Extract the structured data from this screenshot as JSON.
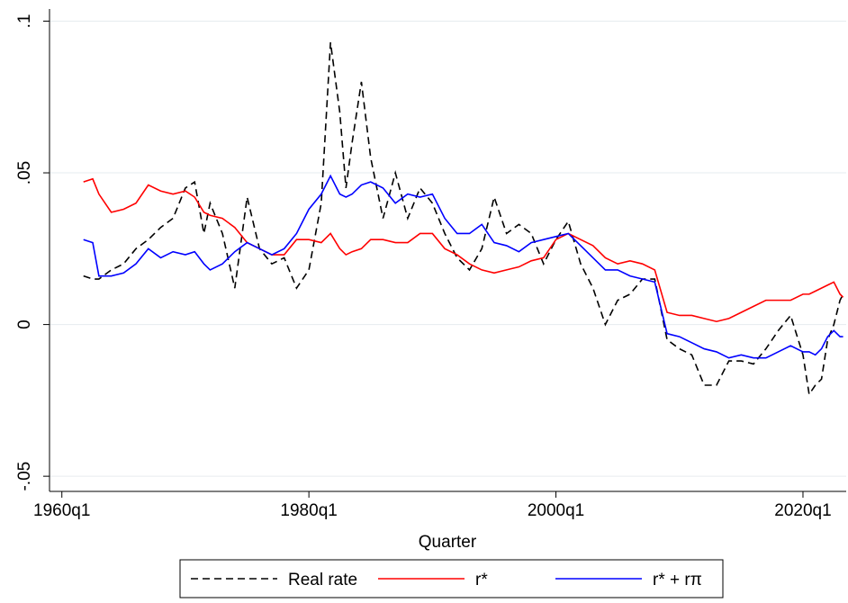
{
  "chart_data": {
    "type": "line",
    "x_label": "Quarter",
    "x": [
      1961.75,
      1962.5,
      1963,
      1964,
      1965,
      1966,
      1967,
      1968,
      1969,
      1970,
      1970.75,
      1971.5,
      1972,
      1973,
      1974,
      1975,
      1976,
      1977,
      1978,
      1979,
      1980,
      1981,
      1981.75,
      1982.5,
      1983,
      1983.5,
      1984.25,
      1985,
      1986,
      1987,
      1988,
      1989,
      1990,
      1991,
      1992,
      1993,
      1994,
      1995,
      1996,
      1997,
      1998,
      1999,
      2000,
      2001,
      2002,
      2003,
      2004,
      2005,
      2006,
      2007,
      2008,
      2009,
      2010,
      2011,
      2012,
      2013,
      2014,
      2015,
      2016,
      2017,
      2018,
      2019,
      2020,
      2020.5,
      2021,
      2021.5,
      2022,
      2022.5,
      2023,
      2023.25
    ],
    "series": [
      {
        "name": "Real rate",
        "color": "#000000",
        "dashed": true,
        "values": [
          0.016,
          0.015,
          0.015,
          0.018,
          0.02,
          0.025,
          0.028,
          0.032,
          0.035,
          0.045,
          0.047,
          0.03,
          0.04,
          0.03,
          0.012,
          0.042,
          0.025,
          0.02,
          0.022,
          0.012,
          0.018,
          0.04,
          0.093,
          0.07,
          0.045,
          0.06,
          0.08,
          0.055,
          0.035,
          0.05,
          0.035,
          0.045,
          0.04,
          0.03,
          0.022,
          0.018,
          0.025,
          0.042,
          0.03,
          0.033,
          0.03,
          0.02,
          0.028,
          0.034,
          0.02,
          0.012,
          0.0,
          0.008,
          0.01,
          0.015,
          0.015,
          -0.005,
          -0.008,
          -0.01,
          -0.02,
          -0.02,
          -0.012,
          -0.012,
          -0.013,
          -0.008,
          -0.002,
          0.003,
          -0.01,
          -0.023,
          -0.02,
          -0.018,
          -0.005,
          0.0,
          0.008,
          0.01
        ]
      },
      {
        "name": "r*",
        "color": "#ff0000",
        "dashed": false,
        "values": [
          0.047,
          0.048,
          0.043,
          0.037,
          0.038,
          0.04,
          0.046,
          0.044,
          0.043,
          0.044,
          0.042,
          0.037,
          0.036,
          0.035,
          0.032,
          0.027,
          0.025,
          0.023,
          0.023,
          0.028,
          0.028,
          0.027,
          0.03,
          0.025,
          0.023,
          0.024,
          0.025,
          0.028,
          0.028,
          0.027,
          0.027,
          0.03,
          0.03,
          0.025,
          0.023,
          0.02,
          0.018,
          0.017,
          0.018,
          0.019,
          0.021,
          0.022,
          0.028,
          0.03,
          0.028,
          0.026,
          0.022,
          0.02,
          0.021,
          0.02,
          0.018,
          0.004,
          0.003,
          0.003,
          0.002,
          0.001,
          0.002,
          0.004,
          0.006,
          0.008,
          0.008,
          0.008,
          0.01,
          0.01,
          0.011,
          0.012,
          0.013,
          0.014,
          0.01,
          0.009
        ]
      },
      {
        "name": "r* + rπ",
        "color": "#0000ff",
        "dashed": false,
        "values": [
          0.028,
          0.027,
          0.016,
          0.016,
          0.017,
          0.02,
          0.025,
          0.022,
          0.024,
          0.023,
          0.024,
          0.02,
          0.018,
          0.02,
          0.024,
          0.027,
          0.025,
          0.023,
          0.025,
          0.03,
          0.038,
          0.043,
          0.049,
          0.043,
          0.042,
          0.043,
          0.046,
          0.047,
          0.045,
          0.04,
          0.043,
          0.042,
          0.043,
          0.035,
          0.03,
          0.03,
          0.033,
          0.027,
          0.026,
          0.024,
          0.027,
          0.028,
          0.029,
          0.03,
          0.026,
          0.022,
          0.018,
          0.018,
          0.016,
          0.015,
          0.014,
          -0.003,
          -0.004,
          -0.006,
          -0.008,
          -0.009,
          -0.011,
          -0.01,
          -0.011,
          -0.011,
          -0.009,
          -0.007,
          -0.009,
          -0.009,
          -0.01,
          -0.008,
          -0.004,
          -0.002,
          -0.004,
          -0.004
        ]
      }
    ],
    "xlim": [
      1959,
      2023.5
    ],
    "xticks": [
      {
        "value": 1960,
        "label": "1960q1"
      },
      {
        "value": 1980,
        "label": "1980q1"
      },
      {
        "value": 2000,
        "label": "2000q1"
      },
      {
        "value": 2020,
        "label": "2020q1"
      }
    ],
    "ylim": [
      -0.055,
      0.104
    ],
    "yticks": [
      {
        "value": -0.05,
        "label": "-.05"
      },
      {
        "value": 0,
        "label": "0"
      },
      {
        "value": 0.05,
        "label": ".05"
      },
      {
        "value": 0.1,
        "label": ".1"
      }
    ],
    "grid": true
  }
}
